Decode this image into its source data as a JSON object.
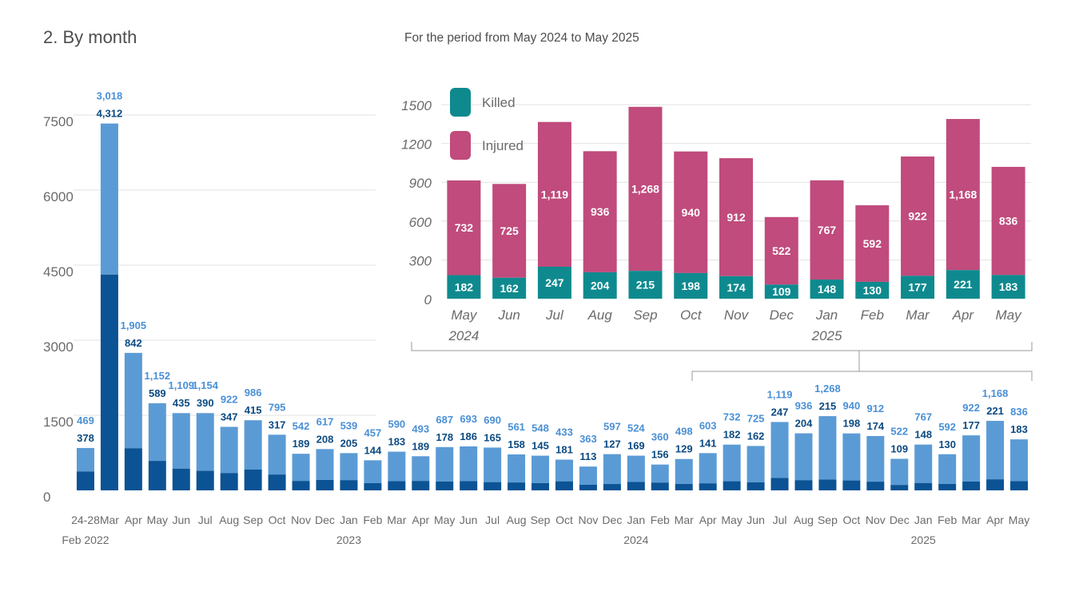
{
  "title": "2. By month",
  "inset_title": "For the period from May 2024 to May 2025",
  "colors": {
    "main_killed": "#0b5394",
    "main_injured": "#5b9bd5",
    "main_killed_label": "#0b4a82",
    "main_injured_label": "#4a90d6",
    "inset_killed": "#0e8a8f",
    "inset_injured": "#c04b7c",
    "grid": "#e2e2e2",
    "bracket": "#9a9a9a"
  },
  "chart_data": [
    {
      "type": "bar",
      "stacked": true,
      "ylim": [
        0,
        7500
      ],
      "yticks": [
        "0",
        "1500",
        "3000",
        "4500",
        "6000",
        "7500"
      ],
      "ytick_values": [
        0,
        1500,
        3000,
        4500,
        6000,
        7500
      ],
      "categories": [
        "24-28",
        "Mar",
        "Apr",
        "May",
        "Jun",
        "Jul",
        "Aug",
        "Sep",
        "Oct",
        "Nov",
        "Dec",
        "Jan",
        "Feb",
        "Mar",
        "Apr",
        "May",
        "Jun",
        "Jul",
        "Aug",
        "Sep",
        "Oct",
        "Nov",
        "Dec",
        "Jan",
        "Feb",
        "Mar",
        "Apr",
        "May",
        "Jun",
        "Jul",
        "Aug",
        "Sep",
        "Oct",
        "Nov",
        "Dec",
        "Jan",
        "Feb",
        "Mar",
        "Apr",
        "May"
      ],
      "year_labels": [
        {
          "index": 0,
          "text": "Feb 2022"
        },
        {
          "index": 11,
          "text": "2023"
        },
        {
          "index": 23,
          "text": "2024"
        },
        {
          "index": 35,
          "text": "2025"
        }
      ],
      "series": [
        {
          "name": "Killed",
          "values": [
            378,
            4312,
            842,
            589,
            435,
            390,
            347,
            415,
            317,
            189,
            208,
            205,
            144,
            183,
            189,
            178,
            186,
            165,
            158,
            145,
            181,
            113,
            127,
            169,
            156,
            129,
            141,
            182,
            162,
            247,
            204,
            215,
            198,
            174,
            109,
            148,
            130,
            177,
            221,
            183
          ]
        },
        {
          "name": "Injured",
          "values": [
            469,
            3018,
            1905,
            1152,
            1109,
            1154,
            922,
            986,
            795,
            542,
            617,
            539,
            457,
            590,
            493,
            687,
            693,
            690,
            561,
            548,
            433,
            363,
            597,
            524,
            360,
            498,
            603,
            732,
            725,
            1119,
            936,
            1268,
            940,
            912,
            522,
            767,
            592,
            922,
            1168,
            836
          ]
        }
      ],
      "killed_labels": [
        "378",
        "4,312",
        "842",
        "589",
        "435",
        "390",
        "347",
        "415",
        "317",
        "189",
        "208",
        "205",
        "144",
        "183",
        "189",
        "178",
        "186",
        "165",
        "158",
        "145",
        "181",
        "113",
        "127",
        "169",
        "156",
        "129",
        "141",
        "182",
        "162",
        "247",
        "204",
        "215",
        "198",
        "174",
        "109",
        "148",
        "130",
        "177",
        "221",
        "183"
      ],
      "injured_labels": [
        "469",
        "3,018",
        "1,905",
        "1,152",
        "1,109",
        "1,154",
        "922",
        "986",
        "795",
        "542",
        "617",
        "539",
        "457",
        "590",
        "493",
        "687",
        "693",
        "690",
        "561",
        "548",
        "433",
        "363",
        "597",
        "524",
        "360",
        "498",
        "603",
        "732",
        "725",
        "1,119",
        "936",
        "1,268",
        "940",
        "912",
        "522",
        "767",
        "592",
        "922",
        "1,168",
        "836"
      ]
    },
    {
      "type": "bar",
      "stacked": true,
      "title": "For the period from May 2024 to May 2025",
      "ylim": [
        0,
        1500
      ],
      "yticks": [
        "0",
        "300",
        "600",
        "900",
        "1200",
        "1500"
      ],
      "ytick_values": [
        0,
        300,
        600,
        900,
        1200,
        1500
      ],
      "categories": [
        "May",
        "Jun",
        "Jul",
        "Aug",
        "Sep",
        "Oct",
        "Nov",
        "Dec",
        "Jan",
        "Feb",
        "Mar",
        "Apr",
        "May"
      ],
      "year_labels": [
        {
          "index": 0,
          "text": "2024"
        },
        {
          "index": 8,
          "text": "2025"
        }
      ],
      "legend": {
        "position": "top-left",
        "entries": [
          "Killed",
          "Injured"
        ]
      },
      "series": [
        {
          "name": "Killed",
          "values": [
            182,
            162,
            247,
            204,
            215,
            198,
            174,
            109,
            148,
            130,
            177,
            221,
            183
          ]
        },
        {
          "name": "Injured",
          "values": [
            732,
            725,
            1119,
            936,
            1268,
            940,
            912,
            522,
            767,
            592,
            922,
            1168,
            836
          ]
        }
      ],
      "killed_labels": [
        "182",
        "162",
        "247",
        "204",
        "215",
        "198",
        "174",
        "109",
        "148",
        "130",
        "177",
        "221",
        "183"
      ],
      "injured_labels": [
        "732",
        "725",
        "1,119",
        "936",
        "1,268",
        "940",
        "912",
        "522",
        "767",
        "592",
        "922",
        "1,168",
        "836"
      ]
    }
  ]
}
